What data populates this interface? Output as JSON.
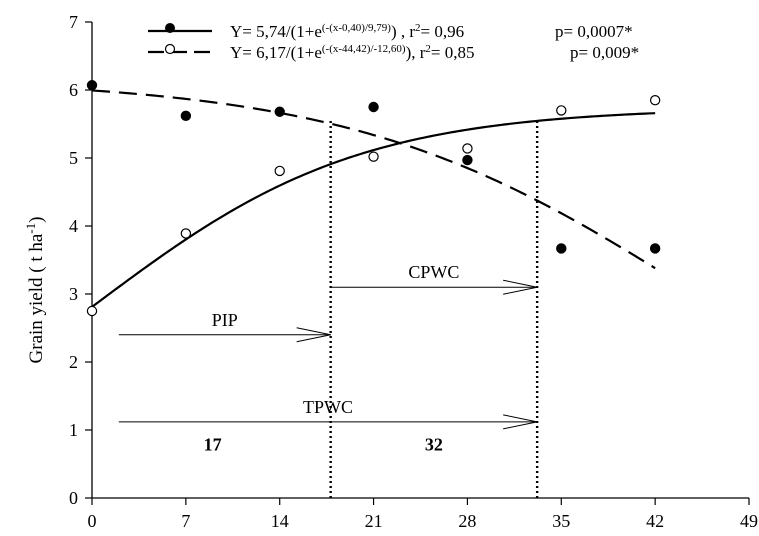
{
  "chart_data": {
    "type": "scatter",
    "ylabel_main": "Grain yield ( t ha",
    "ylabel_sup": "-1",
    "ylabel_close": ")",
    "xlim": [
      0,
      49
    ],
    "ylim": [
      0,
      7
    ],
    "xticks": [
      "0",
      "7",
      "14",
      "21",
      "28",
      "35",
      "42",
      "49"
    ],
    "yticks": [
      "0",
      "1",
      "2",
      "3",
      "4",
      "5",
      "6",
      "7"
    ],
    "series": [
      {
        "marker": "filled-circle",
        "line": "solid",
        "x": [
          0,
          7,
          14,
          21,
          28,
          35,
          42
        ],
        "y": [
          6.07,
          5.62,
          5.68,
          5.75,
          4.97,
          3.67,
          3.67
        ],
        "model": {
          "a": 5.74,
          "x0": 0.4,
          "b": 9.79
        }
      },
      {
        "marker": "open-circle",
        "line": "dashed",
        "x": [
          0,
          7,
          14,
          21,
          28,
          35,
          42
        ],
        "y": [
          2.75,
          3.89,
          4.81,
          5.02,
          5.14,
          5.7,
          5.85
        ],
        "model": {
          "a": 6.17,
          "x0": 44.42,
          "b": -12.6
        }
      }
    ],
    "legend": [
      {
        "pre": "Y= 5,74/(1+e",
        "sup": "(-(x-0,40)/9,79)",
        "post": ") , r",
        "r2sup": "2",
        "r2": "= 0,96",
        "p": "p= 0,0007*"
      },
      {
        "pre": "Y= 6,17/(1+e",
        "sup": "(-(x-44,42)/-12,60)",
        "post": "), r",
        "r2sup": "2",
        "r2": "= 0,85",
        "p": "p= 0,009*"
      }
    ],
    "vlines": [
      17.8,
      33.2
    ],
    "annotations": [
      {
        "label": "CPWC",
        "y": 3.1,
        "x_start": 17.8,
        "x_end": 33.2
      },
      {
        "label": "PIP",
        "y": 2.4,
        "x_start": 2.0,
        "x_end": 17.8
      },
      {
        "label": "TPWC",
        "y": 1.12,
        "x_start": 2.0,
        "x_end": 33.2
      }
    ],
    "period_labels": [
      {
        "text": "17",
        "x": 9.0,
        "y": 0.7
      },
      {
        "text": "32",
        "x": 25.5,
        "y": 0.7
      }
    ]
  }
}
